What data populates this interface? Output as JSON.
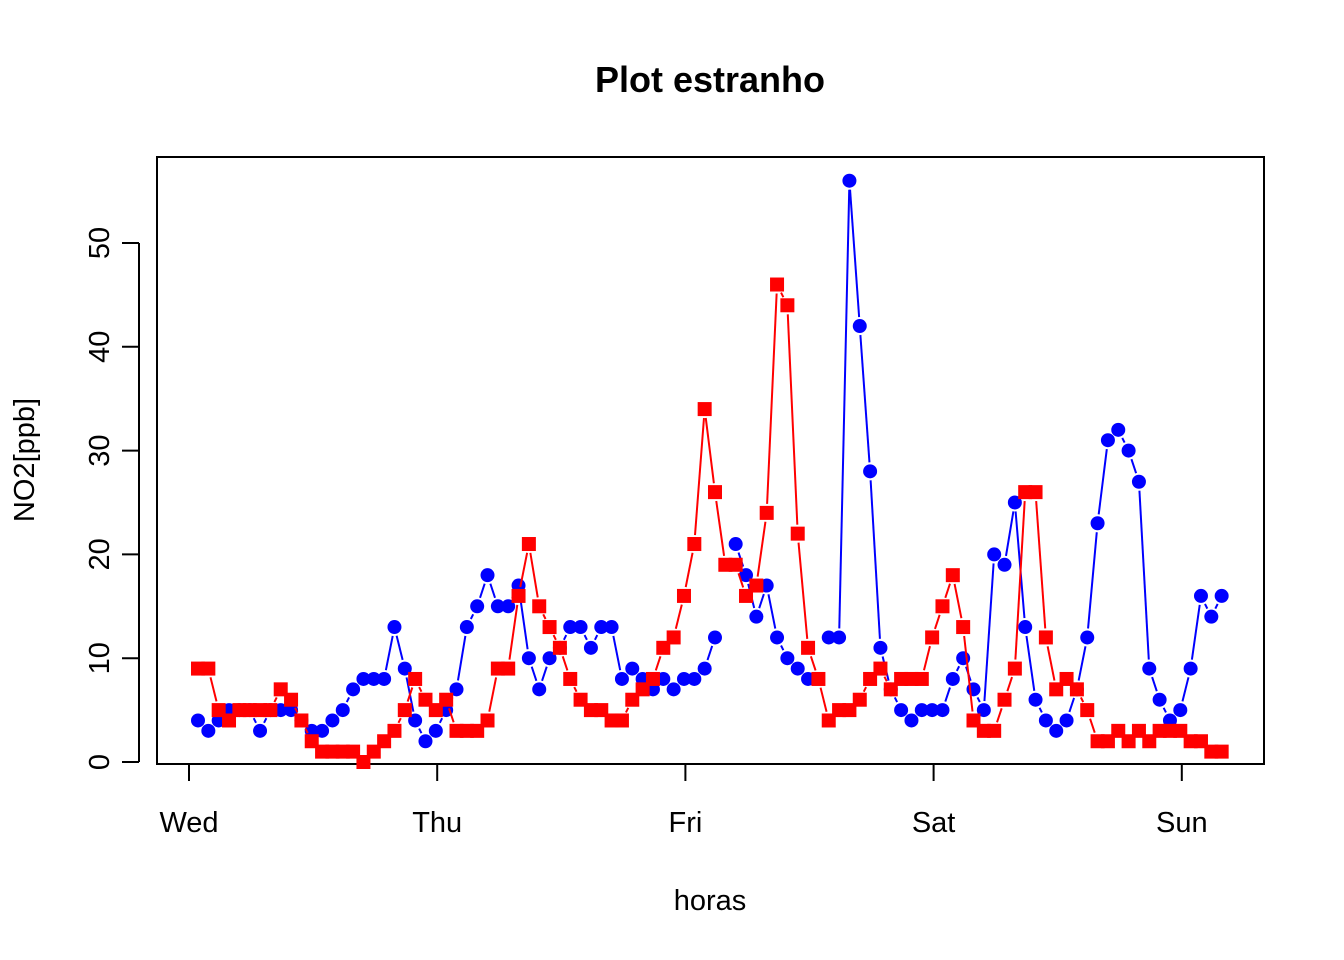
{
  "chart_data": {
    "type": "line",
    "title": "Plot estranho",
    "xlabel": "horas",
    "ylabel": "NO2[ppb]",
    "x_ticks": [
      "Wed",
      "Thu",
      "Fri",
      "Sat",
      "Sun"
    ],
    "y_ticks": [
      0,
      10,
      20,
      30,
      40,
      50
    ],
    "ylim": [
      0,
      57
    ],
    "grid": false,
    "legend": "none",
    "series": [
      {
        "color": "#0000ff",
        "marker": "circle",
        "values": [
          4,
          3,
          4,
          5,
          5,
          5,
          3,
          5,
          5,
          5,
          4,
          3,
          3,
          4,
          5,
          7,
          8,
          8,
          8,
          13,
          9,
          4,
          2,
          3,
          5,
          7,
          13,
          15,
          18,
          15,
          15,
          17,
          10,
          7,
          10,
          11,
          13,
          13,
          11,
          13,
          13,
          8,
          9,
          8,
          7,
          8,
          7,
          8,
          8,
          9,
          12,
          null,
          21,
          18,
          14,
          17,
          12,
          10,
          9,
          8,
          null,
          12,
          12,
          56,
          42,
          28,
          11,
          7,
          5,
          4,
          5,
          5,
          5,
          8,
          10,
          7,
          5,
          20,
          19,
          25,
          13,
          6,
          4,
          3,
          4,
          7,
          12,
          23,
          31,
          32,
          30,
          27,
          9,
          6,
          4,
          5,
          9,
          16,
          14,
          16
        ]
      },
      {
        "color": "#ff0000",
        "marker": "square",
        "values": [
          9,
          9,
          5,
          4,
          5,
          5,
          5,
          5,
          7,
          6,
          4,
          2,
          1,
          1,
          1,
          1,
          0,
          1,
          2,
          3,
          5,
          8,
          6,
          5,
          6,
          3,
          3,
          3,
          4,
          9,
          9,
          16,
          21,
          15,
          13,
          11,
          8,
          6,
          5,
          5,
          4,
          4,
          6,
          7,
          8,
          11,
          12,
          16,
          21,
          34,
          26,
          19,
          19,
          16,
          17,
          24,
          46,
          44,
          22,
          11,
          8,
          4,
          5,
          5,
          6,
          8,
          9,
          7,
          8,
          8,
          8,
          12,
          15,
          18,
          13,
          4,
          3,
          3,
          6,
          9,
          26,
          26,
          12,
          7,
          8,
          7,
          5,
          2,
          2,
          3,
          2,
          3,
          2,
          3,
          3,
          3,
          2,
          2,
          1,
          1
        ]
      }
    ]
  }
}
